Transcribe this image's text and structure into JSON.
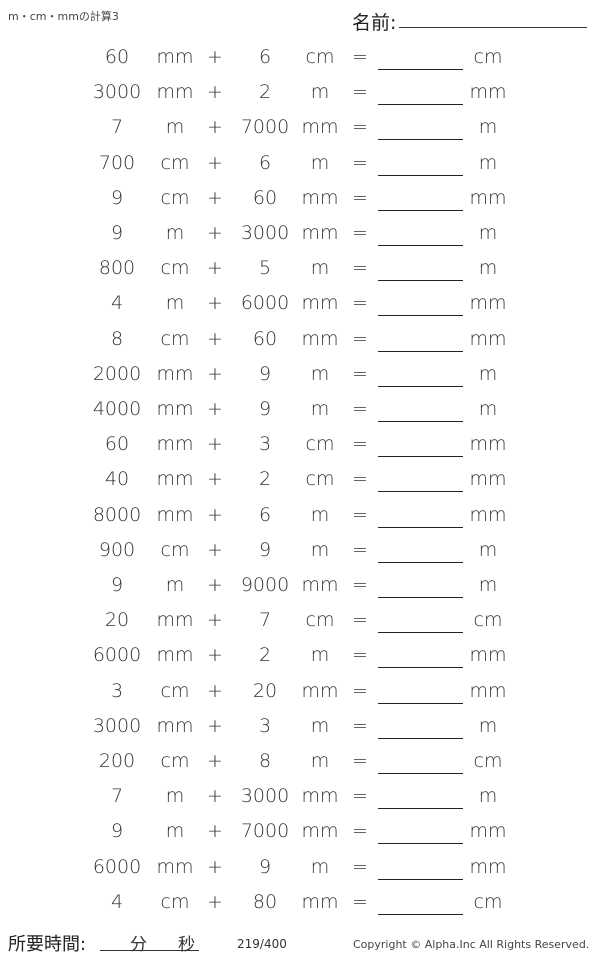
{
  "header": {
    "title": "m・cm・mmの計算3",
    "name_label": "名前:"
  },
  "problems": [
    [
      "60",
      "mm",
      "+",
      "6",
      "cm",
      "=",
      "cm"
    ],
    [
      "3000",
      "mm",
      "+",
      "2",
      "m",
      "=",
      "mm"
    ],
    [
      "7",
      "m",
      "+",
      "7000",
      "mm",
      "=",
      "m"
    ],
    [
      "700",
      "cm",
      "+",
      "6",
      "m",
      "=",
      "m"
    ],
    [
      "9",
      "cm",
      "+",
      "60",
      "mm",
      "=",
      "mm"
    ],
    [
      "9",
      "m",
      "+",
      "3000",
      "mm",
      "=",
      "m"
    ],
    [
      "800",
      "cm",
      "+",
      "5",
      "m",
      "=",
      "m"
    ],
    [
      "4",
      "m",
      "+",
      "6000",
      "mm",
      "=",
      "mm"
    ],
    [
      "8",
      "cm",
      "+",
      "60",
      "mm",
      "=",
      "mm"
    ],
    [
      "2000",
      "mm",
      "+",
      "9",
      "m",
      "=",
      "m"
    ],
    [
      "4000",
      "mm",
      "+",
      "9",
      "m",
      "=",
      "m"
    ],
    [
      "60",
      "mm",
      "+",
      "3",
      "cm",
      "=",
      "mm"
    ],
    [
      "40",
      "mm",
      "+",
      "2",
      "cm",
      "=",
      "mm"
    ],
    [
      "8000",
      "mm",
      "+",
      "6",
      "m",
      "=",
      "mm"
    ],
    [
      "900",
      "cm",
      "+",
      "9",
      "m",
      "=",
      "m"
    ],
    [
      "9",
      "m",
      "+",
      "9000",
      "mm",
      "=",
      "m"
    ],
    [
      "20",
      "mm",
      "+",
      "7",
      "cm",
      "=",
      "cm"
    ],
    [
      "6000",
      "mm",
      "+",
      "2",
      "m",
      "=",
      "mm"
    ],
    [
      "3",
      "cm",
      "+",
      "20",
      "mm",
      "=",
      "mm"
    ],
    [
      "3000",
      "mm",
      "+",
      "3",
      "m",
      "=",
      "m"
    ],
    [
      "200",
      "cm",
      "+",
      "8",
      "m",
      "=",
      "cm"
    ],
    [
      "7",
      "m",
      "+",
      "3000",
      "mm",
      "=",
      "m"
    ],
    [
      "9",
      "m",
      "+",
      "7000",
      "mm",
      "=",
      "mm"
    ],
    [
      "6000",
      "mm",
      "+",
      "9",
      "m",
      "=",
      "mm"
    ],
    [
      "4",
      "cm",
      "+",
      "80",
      "mm",
      "=",
      "cm"
    ]
  ],
  "footer": {
    "time_label": "所要時間:",
    "minutes": "分",
    "seconds": "秒",
    "page": "219/400",
    "copyright": "Copyright © Alpha.Inc All Rights Reserved."
  }
}
